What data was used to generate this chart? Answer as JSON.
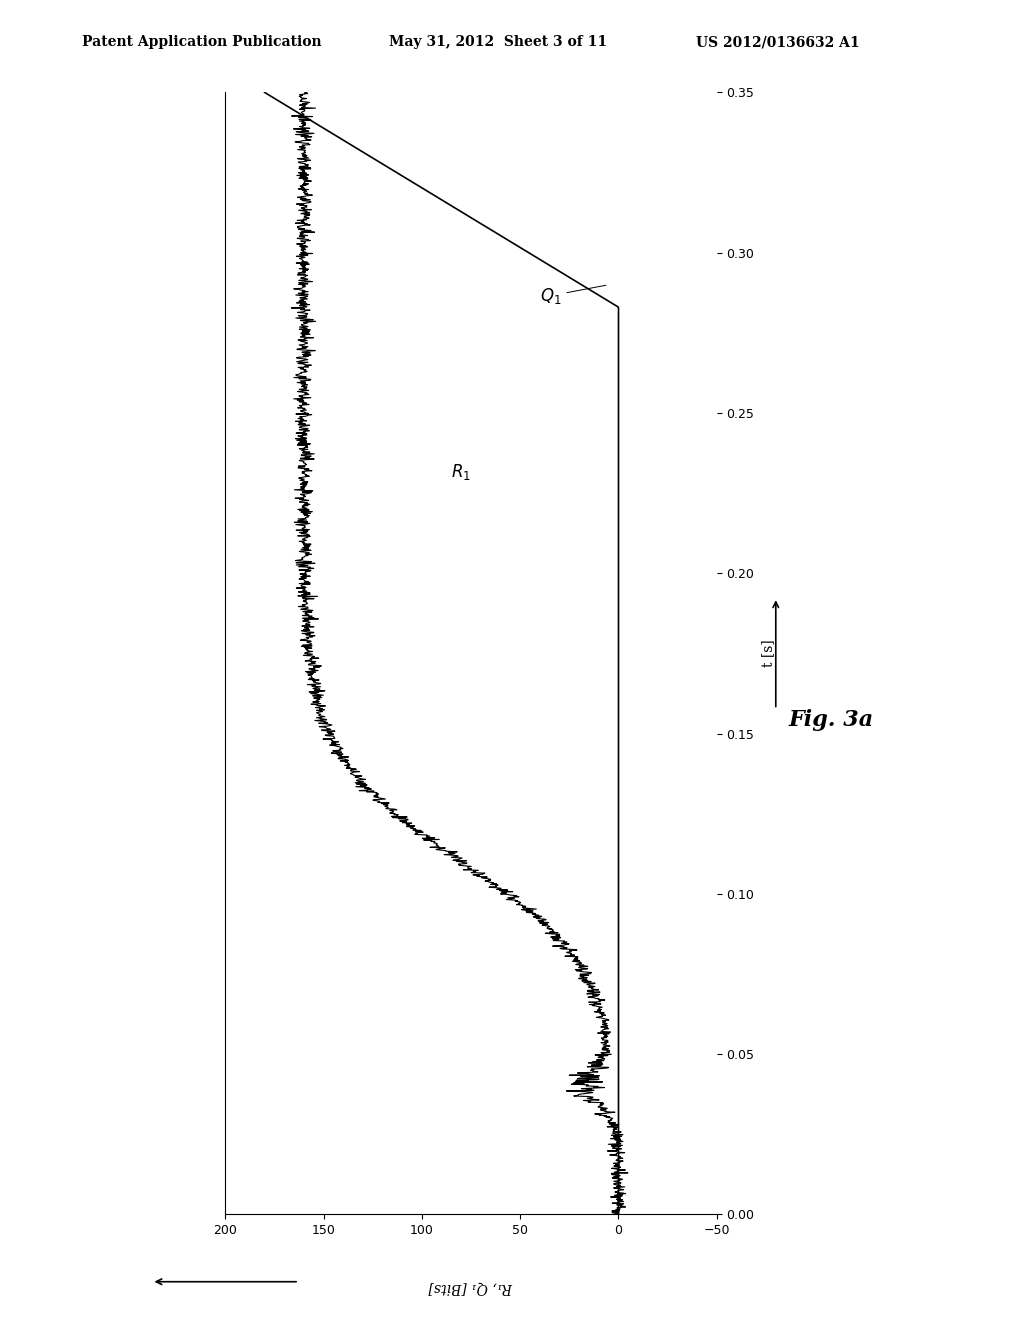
{
  "header_left": "Patent Application Publication",
  "header_mid": "May 31, 2012  Sheet 3 of 11",
  "header_right": "US 2012/0136632 A1",
  "fig_label": "Fig. 3a",
  "xlabel": "t [s]",
  "ylabel": "R₁, Q₁ [Bits]",
  "xlim": [
    0,
    0.35
  ],
  "ylim": [
    -50,
    200
  ],
  "xticks": [
    0,
    0.05,
    0.1,
    0.15,
    0.2,
    0.25,
    0.3,
    0.35
  ],
  "yticks": [
    -50,
    0,
    50,
    100,
    150,
    200
  ],
  "background_color": "#ffffff",
  "line_color": "#000000",
  "header_fontsize": 10,
  "axis_fontsize": 10,
  "label_fontsize": 12
}
